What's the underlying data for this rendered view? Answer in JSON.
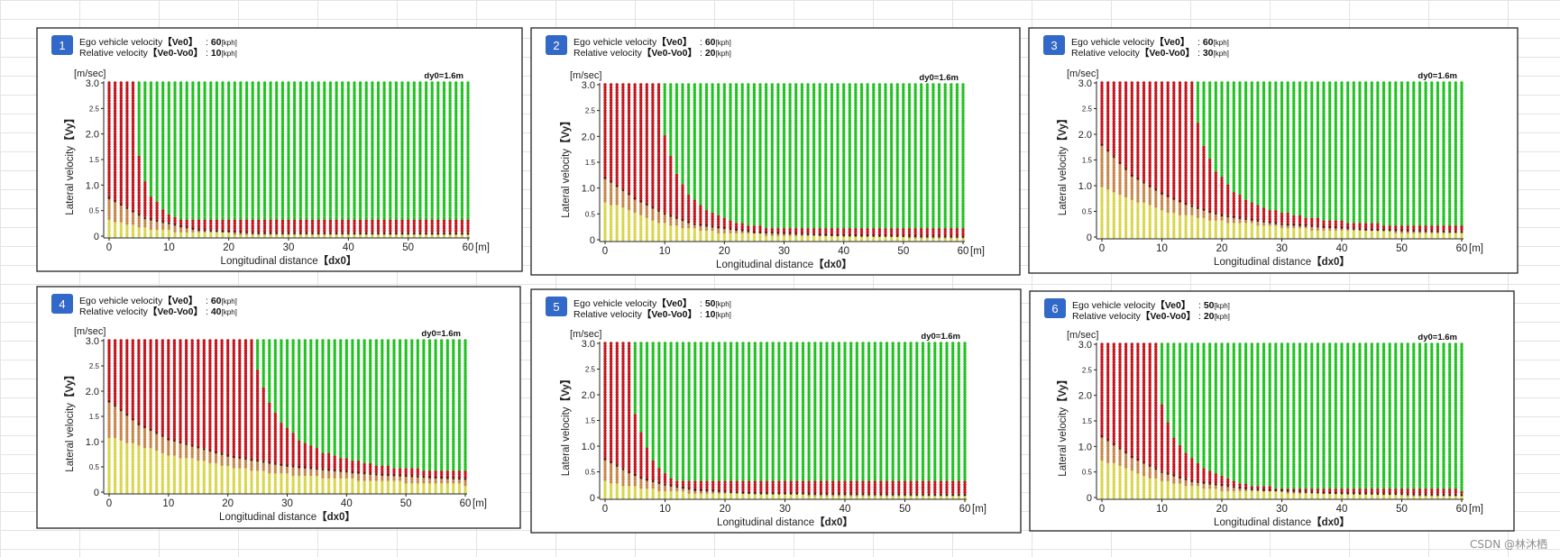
{
  "colors": {
    "safe": "#1fc21f",
    "danger": "#c4151c",
    "caution": "#c8874a",
    "low": "#d8d64a",
    "dark": "#3a1a1a",
    "badge": "#3268c8",
    "grid": "#e3e3e3"
  },
  "watermark": "CSDN @林沐栖",
  "chart_data": [
    {
      "type": "scatter",
      "panel_number": "1",
      "ego_label": "Ego vehicle velocity",
      "ego_symbol": "【Ve0】",
      "ego_value": "60",
      "rel_label": "Relative velocity",
      "rel_symbol": "【Ve0-Vo0】",
      "rel_value": "10",
      "unit": "[kph]",
      "dy0_label": "dy0=1.6m",
      "y_unit_label": "[m/sec]",
      "x_unit_label": "[m]",
      "xlabel": "Longitudinal distance",
      "xlabel_symbol": "【dx0】",
      "ylabel": "Lateral velocity",
      "ylabel_symbol": "【Vy】",
      "xlim": [
        0,
        60
      ],
      "ylim": [
        0,
        3.0
      ],
      "x_ticks": [
        "0",
        "10",
        "20",
        "30",
        "40",
        "50",
        "60"
      ],
      "y_ticks": [
        "0",
        "0.5",
        "1.0",
        "1.5",
        "2.0",
        "2.5",
        "3.0"
      ],
      "danger_boundary": [
        [
          0,
          3.0
        ],
        [
          4.5,
          3.0
        ],
        [
          4.5,
          1.9
        ],
        [
          5.5,
          1.25
        ],
        [
          7,
          0.8
        ],
        [
          9,
          0.5
        ],
        [
          11,
          0.38
        ],
        [
          13,
          0.3
        ],
        [
          60,
          0.3
        ]
      ],
      "caution_boundary": [
        [
          0,
          0.75
        ],
        [
          3,
          0.55
        ],
        [
          6,
          0.35
        ],
        [
          10,
          0.25
        ],
        [
          15,
          0.12
        ],
        [
          25,
          0.06
        ],
        [
          60,
          0.05
        ]
      ],
      "low_boundary": [
        [
          0,
          0.3
        ],
        [
          5,
          0.18
        ],
        [
          10,
          0.1
        ],
        [
          20,
          0.05
        ],
        [
          60,
          0.03
        ]
      ]
    },
    {
      "type": "scatter",
      "panel_number": "2",
      "ego_label": "Ego vehicle velocity",
      "ego_symbol": "【Ve0】",
      "ego_value": "60",
      "rel_label": "Relative velocity",
      "rel_symbol": "【Ve0-Vo0】",
      "rel_value": "20",
      "unit": "[kph]",
      "dy0_label": "dy0=1.6m",
      "y_unit_label": "[m/sec]",
      "x_unit_label": "[m]",
      "xlabel": "Longitudinal distance",
      "xlabel_symbol": "【dx0】",
      "ylabel": "Lateral velocity",
      "ylabel_symbol": "【Vy】",
      "xlim": [
        0,
        60
      ],
      "ylim": [
        0,
        3.0
      ],
      "x_ticks": [
        "0",
        "10",
        "20",
        "30",
        "40",
        "50",
        "60"
      ],
      "y_ticks": [
        "0",
        "0.5",
        "1.0",
        "1.5",
        "2.0",
        "2.5",
        "3.0"
      ],
      "danger_boundary": [
        [
          0,
          3.0
        ],
        [
          9.5,
          3.0
        ],
        [
          9.5,
          2.3
        ],
        [
          10.5,
          1.8
        ],
        [
          12,
          1.3
        ],
        [
          14,
          0.9
        ],
        [
          17,
          0.55
        ],
        [
          21,
          0.35
        ],
        [
          26,
          0.25
        ],
        [
          30,
          0.2
        ],
        [
          60,
          0.2
        ]
      ],
      "caution_boundary": [
        [
          0,
          1.2
        ],
        [
          5,
          0.8
        ],
        [
          10,
          0.5
        ],
        [
          15,
          0.3
        ],
        [
          25,
          0.15
        ],
        [
          40,
          0.08
        ],
        [
          60,
          0.06
        ]
      ],
      "low_boundary": [
        [
          0,
          0.75
        ],
        [
          5,
          0.5
        ],
        [
          10,
          0.3
        ],
        [
          20,
          0.12
        ],
        [
          40,
          0.06
        ],
        [
          60,
          0.04
        ]
      ]
    },
    {
      "type": "scatter",
      "panel_number": "3",
      "ego_label": "Ego vehicle velocity",
      "ego_symbol": "【Ve0】",
      "ego_value": "60",
      "rel_label": "Relative velocity",
      "rel_symbol": "【Ve0-Vo0】",
      "rel_value": "30",
      "unit": "[kph]",
      "dy0_label": "dy0=1.6m",
      "y_unit_label": "[m/sec]",
      "x_unit_label": "[m]",
      "xlabel": "Longitudinal distance",
      "xlabel_symbol": "【dx0】",
      "ylabel": "Lateral velocity",
      "ylabel_symbol": "【Vy】",
      "xlim": [
        0,
        60
      ],
      "ylim": [
        0,
        3.0
      ],
      "x_ticks": [
        "0",
        "10",
        "20",
        "30",
        "40",
        "50",
        "60"
      ],
      "y_ticks": [
        "0",
        "0.5",
        "1.0",
        "1.5",
        "2.0",
        "2.5",
        "3.0"
      ],
      "danger_boundary": [
        [
          0,
          3.0
        ],
        [
          15.5,
          3.0
        ],
        [
          15.5,
          2.4
        ],
        [
          17,
          1.8
        ],
        [
          19,
          1.3
        ],
        [
          22,
          0.9
        ],
        [
          26,
          0.6
        ],
        [
          31,
          0.45
        ],
        [
          37,
          0.33
        ],
        [
          45,
          0.26
        ],
        [
          52,
          0.22
        ],
        [
          60,
          0.2
        ]
      ],
      "caution_boundary": [
        [
          0,
          1.8
        ],
        [
          5,
          1.2
        ],
        [
          10,
          0.85
        ],
        [
          15,
          0.6
        ],
        [
          20,
          0.42
        ],
        [
          30,
          0.25
        ],
        [
          45,
          0.14
        ],
        [
          60,
          0.1
        ]
      ],
      "low_boundary": [
        [
          0,
          1.0
        ],
        [
          5,
          0.75
        ],
        [
          10,
          0.5
        ],
        [
          20,
          0.3
        ],
        [
          35,
          0.15
        ],
        [
          60,
          0.06
        ]
      ]
    },
    {
      "type": "scatter",
      "panel_number": "4",
      "ego_label": "Ego vehicle velocity",
      "ego_symbol": "【Ve0】",
      "ego_value": "60",
      "rel_label": "Relative velocity",
      "rel_symbol": "【Ve0-Vo0】",
      "rel_value": "40",
      "unit": "[kph]",
      "dy0_label": "dy0=1.6m",
      "y_unit_label": "[m/sec]",
      "x_unit_label": "[m]",
      "xlabel": "Longitudinal distance",
      "xlabel_symbol": "【dx0】",
      "ylabel": "Lateral velocity",
      "ylabel_symbol": "【Vy】",
      "xlim": [
        0,
        60
      ],
      "ylim": [
        0,
        3.0
      ],
      "x_ticks": [
        "0",
        "10",
        "20",
        "30",
        "40",
        "50",
        "60"
      ],
      "y_ticks": [
        "0",
        "0.5",
        "1.0",
        "1.5",
        "2.0",
        "2.5",
        "3.0"
      ],
      "danger_boundary": [
        [
          0,
          3.0
        ],
        [
          24,
          3.0
        ],
        [
          25,
          2.4
        ],
        [
          26.5,
          1.9
        ],
        [
          29,
          1.4
        ],
        [
          32,
          1.05
        ],
        [
          36,
          0.8
        ],
        [
          41,
          0.62
        ],
        [
          47,
          0.5
        ],
        [
          54,
          0.43
        ],
        [
          60,
          0.4
        ]
      ],
      "caution_boundary": [
        [
          0,
          1.8
        ],
        [
          5,
          1.35
        ],
        [
          10,
          1.05
        ],
        [
          20,
          0.72
        ],
        [
          30,
          0.52
        ],
        [
          45,
          0.35
        ],
        [
          60,
          0.26
        ]
      ],
      "low_boundary": [
        [
          0,
          1.1
        ],
        [
          10,
          0.75
        ],
        [
          20,
          0.5
        ],
        [
          30,
          0.35
        ],
        [
          45,
          0.22
        ],
        [
          60,
          0.15
        ]
      ]
    },
    {
      "type": "scatter",
      "panel_number": "5",
      "ego_label": "Ego vehicle velocity",
      "ego_symbol": "【Ve0】",
      "ego_value": "50",
      "rel_label": "Relative velocity",
      "rel_symbol": "【Ve0-Vo0】",
      "rel_value": "10",
      "unit": "[kph]",
      "dy0_label": "dy0=1.6m",
      "y_unit_label": "[m/sec]",
      "x_unit_label": "[m]",
      "xlabel": "Longitudinal distance",
      "xlabel_symbol": "【dx0】",
      "ylabel": "Lateral velocity",
      "ylabel_symbol": "【Vy】",
      "xlim": [
        0,
        60
      ],
      "ylim": [
        0,
        3.0
      ],
      "x_ticks": [
        "0",
        "10",
        "20",
        "30",
        "40",
        "50",
        "60"
      ],
      "y_ticks": [
        "0",
        "0.5",
        "1.0",
        "1.5",
        "2.0",
        "2.5",
        "3.0"
      ],
      "danger_boundary": [
        [
          0,
          3.0
        ],
        [
          4.2,
          3.0
        ],
        [
          4.2,
          2.0
        ],
        [
          5.3,
          1.5
        ],
        [
          6.8,
          1.0
        ],
        [
          8.5,
          0.6
        ],
        [
          10.5,
          0.4
        ],
        [
          12,
          0.3
        ],
        [
          60,
          0.3
        ]
      ],
      "caution_boundary": [
        [
          0,
          0.75
        ],
        [
          3,
          0.55
        ],
        [
          6,
          0.38
        ],
        [
          10,
          0.25
        ],
        [
          15,
          0.15
        ],
        [
          25,
          0.08
        ],
        [
          60,
          0.05
        ]
      ],
      "low_boundary": [
        [
          0,
          0.32
        ],
        [
          5,
          0.2
        ],
        [
          10,
          0.12
        ],
        [
          20,
          0.06
        ],
        [
          60,
          0.03
        ]
      ]
    },
    {
      "type": "scatter",
      "panel_number": "6",
      "ego_label": "Ego vehicle velocity",
      "ego_symbol": "【Ve0】",
      "ego_value": "50",
      "rel_label": "Relative velocity",
      "rel_symbol": "【Ve0-Vo0】",
      "rel_value": "20",
      "unit": "[kph]",
      "dy0_label": "dy0=1.6m",
      "y_unit_label": "[m/sec]",
      "x_unit_label": "[m]",
      "xlabel": "Longitudinal distance",
      "xlabel_symbol": "【dx0】",
      "ylabel": "Lateral velocity",
      "ylabel_symbol": "【Vy】",
      "xlim": [
        0,
        60
      ],
      "ylim": [
        0,
        3.0
      ],
      "x_ticks": [
        "0",
        "10",
        "20",
        "30",
        "40",
        "50",
        "60"
      ],
      "y_ticks": [
        "0",
        "0.5",
        "1.0",
        "1.5",
        "2.0",
        "2.5",
        "3.0"
      ],
      "danger_boundary": [
        [
          0,
          3.0
        ],
        [
          9.2,
          3.0
        ],
        [
          9.2,
          2.2
        ],
        [
          10.5,
          1.6
        ],
        [
          12,
          1.2
        ],
        [
          14,
          0.9
        ],
        [
          17,
          0.55
        ],
        [
          21,
          0.35
        ],
        [
          26,
          0.22
        ],
        [
          30,
          0.18
        ],
        [
          60,
          0.15
        ]
      ],
      "caution_boundary": [
        [
          0,
          1.2
        ],
        [
          5,
          0.8
        ],
        [
          10,
          0.5
        ],
        [
          15,
          0.32
        ],
        [
          25,
          0.16
        ],
        [
          40,
          0.08
        ],
        [
          60,
          0.05
        ]
      ],
      "low_boundary": [
        [
          0,
          0.75
        ],
        [
          5,
          0.5
        ],
        [
          10,
          0.32
        ],
        [
          20,
          0.14
        ],
        [
          40,
          0.06
        ],
        [
          60,
          0.04
        ]
      ]
    }
  ]
}
